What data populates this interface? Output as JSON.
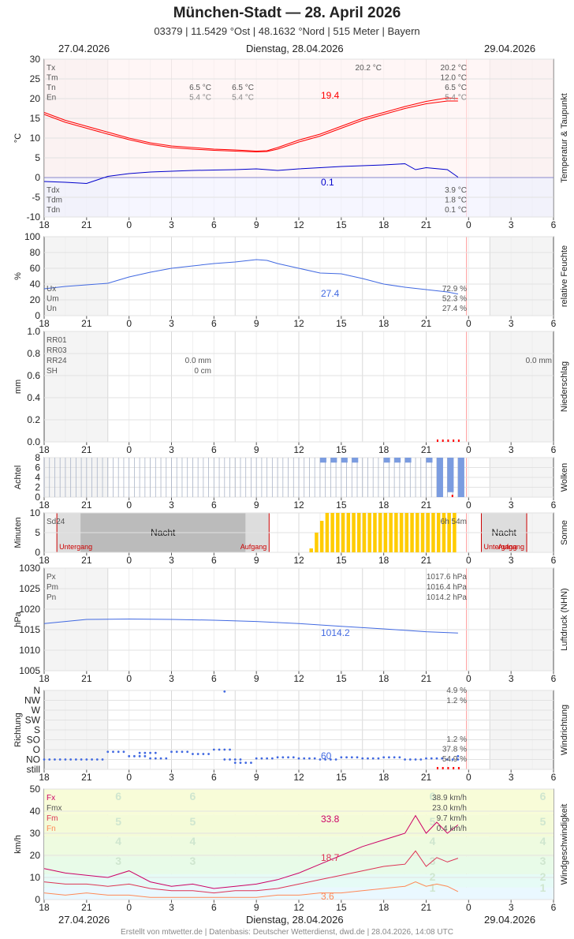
{
  "header": {
    "title": "München-Stadt  —  28. April 2026",
    "subtitle": "03379  |  11.5429 °Ost  |  48.1632 °Nord  |  515 Meter  |  Bayern",
    "date_left": "27.04.2026",
    "date_center": "Dienstag, 28.04.2026",
    "date_right": "29.04.2026"
  },
  "footer": "Erstellt von mtwetter.de | Datenbasis: Deutscher Wetterdienst, dwd.de | 28.04.2026, 14:08 UTC",
  "colors": {
    "temp": "#ff0000",
    "dew": "#0000cc",
    "humidity": "#4169e1",
    "sun": "#ffcc00",
    "night": "#bbbbbb",
    "precip_marker": "#ff0000",
    "cloud": "#7b9ce0",
    "wind_max": "#cc0066",
    "wind_mean": "#dd3355",
    "wind_min": "#ff8855",
    "now_line": "#ff9999"
  },
  "x_ticks": [
    "18",
    "21",
    "0",
    "3",
    "6",
    "9",
    "12",
    "15",
    "18",
    "21",
    "0",
    "3",
    "6"
  ],
  "chart_data": [
    {
      "id": "temperature",
      "type": "line",
      "ylabel": "°C",
      "side_label": "Temperatur & Taupunkt",
      "ylim": [
        -10,
        30
      ],
      "yticks": [
        "30",
        "25",
        "20",
        "15",
        "10",
        "5",
        "0",
        "-5",
        "-10"
      ],
      "legend_top": [
        "Tx",
        "Tm",
        "Tn",
        "En"
      ],
      "legend_bottom": [
        "Tdx",
        "Tdm",
        "Tdn"
      ],
      "mid_values": [
        {
          "col1": "6.5 °C",
          "col2": "6.5 °C"
        },
        {
          "col1": "5.4 °C",
          "col2": "5.4 °C"
        }
      ],
      "extra_value": "20.2 °C",
      "summary_top": [
        "20.2 °C",
        "12.0 °C",
        "6.5 °C",
        "5.4 °C"
      ],
      "summary_bottom": [
        "3.9 °C",
        "1.8 °C",
        "0.1 °C"
      ],
      "end_label_temp": "19.4",
      "end_label_dew": "0.1",
      "series": [
        {
          "name": "Tx",
          "x": [
            18,
            19,
            20,
            21,
            22,
            23,
            24,
            25,
            26,
            27,
            28,
            28.5,
            29,
            30,
            31,
            32,
            33,
            34,
            35,
            36,
            37,
            37.5
          ],
          "y": [
            16.5,
            14.5,
            13,
            11.5,
            10,
            8.8,
            8,
            7.6,
            7.2,
            7,
            6.7,
            6.8,
            7.6,
            9.5,
            11,
            13,
            15,
            16.5,
            18,
            19.3,
            20.2,
            20
          ]
        },
        {
          "name": "Tm",
          "x": [
            18,
            19,
            20,
            21,
            22,
            23,
            24,
            25,
            26,
            27,
            28,
            28.5,
            29,
            30,
            31,
            32,
            33,
            34,
            35,
            36,
            37,
            37.5
          ],
          "y": [
            16,
            14,
            12.5,
            11,
            9.6,
            8.4,
            7.6,
            7.2,
            6.9,
            6.7,
            6.5,
            6.6,
            7.2,
            9,
            10.5,
            12.5,
            14.5,
            16,
            17.5,
            18.7,
            19.4,
            19.4
          ]
        },
        {
          "name": "Tdm",
          "x": [
            18,
            19,
            20,
            21,
            22,
            23,
            24,
            25,
            26,
            27,
            28,
            29,
            30,
            31,
            32,
            33,
            34,
            35,
            35.5,
            36,
            37,
            37.5
          ],
          "y": [
            -1,
            -1.2,
            -1.5,
            0.3,
            1,
            1.4,
            1.6,
            1.8,
            1.9,
            2,
            2.2,
            1.8,
            2.2,
            2.5,
            2.8,
            3,
            3.2,
            3.5,
            2,
            2.5,
            2,
            0.1
          ]
        }
      ]
    },
    {
      "id": "humidity",
      "type": "line",
      "ylabel": "%",
      "side_label": "relative Feuchte",
      "ylim": [
        0,
        100
      ],
      "yticks": [
        "100",
        "80",
        "60",
        "40",
        "20",
        "0"
      ],
      "legend": [
        "Ux",
        "Um",
        "Un"
      ],
      "summary": [
        "72.9 %",
        "52.3 %",
        "27.4 %"
      ],
      "end_label": "27.4",
      "series": [
        {
          "name": "Um",
          "x": [
            18,
            19,
            20,
            21,
            22,
            23,
            24,
            25,
            26,
            27,
            28,
            28.5,
            29,
            30,
            31,
            32,
            33,
            34,
            35,
            36,
            37,
            37.5
          ],
          "y": [
            34,
            37,
            39,
            41,
            49,
            55,
            60,
            63,
            66,
            68,
            71,
            70,
            66,
            60,
            54,
            53,
            47,
            40,
            36,
            33,
            30,
            27.4
          ]
        }
      ]
    },
    {
      "id": "precipitation",
      "type": "bar",
      "ylabel": "mm",
      "side_label": "Niederschlag",
      "ylim": [
        0,
        1.0
      ],
      "yticks": [
        "1.0",
        "0.8",
        "0.6",
        "0.4",
        "0.2",
        "0.0"
      ],
      "legend": [
        "RR01",
        "RR03",
        "RR24",
        "SH"
      ],
      "values": [
        "0.0 mm",
        "0 cm"
      ],
      "total": "0.0 mm"
    },
    {
      "id": "clouds",
      "type": "bar",
      "ylabel": "Achtel",
      "side_label": "Wolken",
      "ylim": [
        0,
        8
      ],
      "yticks": [
        "8",
        "6",
        "4",
        "2",
        "0"
      ],
      "x": [
        29,
        29.5,
        30,
        30.5,
        31,
        31.5,
        32,
        32.5,
        33,
        33.5,
        34,
        34.5,
        35,
        35.5,
        36,
        36.5,
        37,
        37.5
      ],
      "values": [
        0,
        0,
        0,
        0,
        1,
        1,
        1,
        1,
        0,
        0,
        1,
        1,
        1,
        0,
        1,
        8,
        7,
        8
      ]
    },
    {
      "id": "sunshine",
      "type": "bar",
      "ylabel": "Minuten",
      "side_label": "Sonne",
      "ylim": [
        0,
        10
      ],
      "yticks": [
        "10",
        "5",
        "0"
      ],
      "legend": [
        "Sd24"
      ],
      "total": "6h 54m",
      "night_label": "Nacht",
      "sunset_label": "Untergang",
      "sunrise_label": "Aufgang",
      "x": [
        30.5,
        30.75,
        31,
        31.25,
        31.5,
        31.75,
        32,
        32.25,
        32.5,
        32.75,
        33,
        33.25,
        33.5,
        33.75,
        34,
        34.25,
        34.5,
        34.75,
        35,
        35.25,
        35.5,
        35.75,
        36,
        36.25,
        36.5,
        36.75,
        37,
        37.25
      ],
      "values": [
        1,
        5,
        8,
        10,
        10,
        10,
        10,
        10,
        10,
        10,
        10,
        10,
        10,
        10,
        10,
        10,
        10,
        10,
        10,
        10,
        10,
        10,
        10,
        10,
        10,
        10,
        10,
        10
      ]
    },
    {
      "id": "pressure",
      "type": "line",
      "ylabel": "hPa",
      "side_label": "Luftdruck (NHN)",
      "ylim": [
        1005,
        1030
      ],
      "yticks": [
        "1030",
        "1025",
        "1020",
        "1015",
        "1010",
        "1005"
      ],
      "legend": [
        "Px",
        "Pm",
        "Pn"
      ],
      "summary": [
        "1017.6 hPa",
        "1016.4 hPa",
        "1014.2 hPa"
      ],
      "end_label": "1014.2",
      "series": [
        {
          "name": "Pm",
          "x": [
            18,
            20,
            22,
            24,
            26,
            28,
            30,
            32,
            34,
            36,
            37.5
          ],
          "y": [
            1016.5,
            1017.5,
            1017.6,
            1017.5,
            1017.3,
            1017,
            1016.5,
            1015.8,
            1015.2,
            1014.5,
            1014.2
          ]
        }
      ]
    },
    {
      "id": "wind_direction",
      "type": "scatter",
      "ylabel": "Richtung",
      "side_label": "Windrichtung",
      "categories": [
        "N",
        "NW",
        "W",
        "SW",
        "S",
        "SO",
        "O",
        "NO",
        "still"
      ],
      "summary_top": [
        "4.9 %",
        "1.2 %"
      ],
      "summary_bottom": [
        "1.2 %",
        "37.8 %",
        "54.9 %"
      ],
      "end_label": "60",
      "x": [
        18,
        19,
        20,
        21,
        22,
        22.5,
        23,
        24,
        25,
        26,
        26.5,
        27,
        28,
        29,
        30,
        31,
        32,
        33,
        34,
        35,
        36,
        37,
        37.5
      ],
      "y": [
        45,
        45,
        45,
        80,
        60,
        75,
        50,
        80,
        70,
        90,
        45,
        30,
        50,
        55,
        50,
        45,
        55,
        50,
        55,
        45,
        50,
        45,
        60
      ]
    },
    {
      "id": "wind_speed",
      "type": "line",
      "ylabel": "km/h",
      "side_label": "Windgeschwindigkeit",
      "ylim": [
        0,
        50
      ],
      "yticks": [
        "50",
        "40",
        "30",
        "20",
        "10",
        "0"
      ],
      "legend": [
        "Fx",
        "Fmx",
        "Fm",
        "Fn"
      ],
      "summary": [
        "38.9 km/h",
        "23.0 km/h",
        "9.7 km/h",
        "0.4 km/h"
      ],
      "bft_labels": [
        "6",
        "5",
        "4",
        "3",
        "2",
        "1"
      ],
      "end_labels": [
        "33.8",
        "18.7",
        "3.6"
      ],
      "series": [
        {
          "name": "Fx",
          "x": [
            18,
            19,
            20,
            21,
            22,
            23,
            24,
            25,
            26,
            27,
            28,
            29,
            30,
            31,
            32,
            33,
            34,
            35,
            35.5,
            36,
            36.5,
            37,
            37.5
          ],
          "y": [
            14,
            12,
            11,
            10,
            13,
            8,
            6,
            7,
            5,
            6,
            7,
            9,
            12,
            16,
            20,
            24,
            27,
            30,
            38,
            30,
            35,
            30,
            33.8
          ]
        },
        {
          "name": "Fm",
          "x": [
            18,
            19,
            20,
            21,
            22,
            23,
            24,
            25,
            26,
            27,
            28,
            29,
            30,
            31,
            32,
            33,
            34,
            35,
            35.5,
            36,
            36.5,
            37,
            37.5
          ],
          "y": [
            8,
            7,
            7,
            6,
            7,
            5,
            4,
            4,
            3,
            4,
            4,
            5,
            7,
            9,
            11,
            13,
            15,
            16,
            22,
            15,
            19,
            17,
            18.7
          ]
        },
        {
          "name": "Fn",
          "x": [
            18,
            19,
            20,
            21,
            22,
            23,
            24,
            25,
            26,
            27,
            28,
            29,
            30,
            31,
            32,
            33,
            34,
            35,
            35.5,
            36,
            36.5,
            37,
            37.5
          ],
          "y": [
            3,
            2,
            3,
            2,
            2,
            1,
            1,
            1,
            1,
            1,
            1,
            2,
            2,
            3,
            3,
            4,
            5,
            6,
            8,
            6,
            7,
            6,
            3.6
          ]
        }
      ]
    }
  ]
}
